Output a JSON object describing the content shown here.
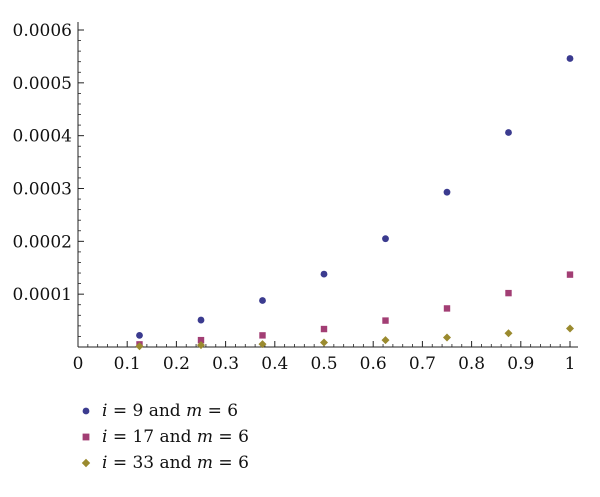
{
  "chart_data": {
    "type": "scatter",
    "title": "",
    "xlabel": "",
    "ylabel": "",
    "xlim": [
      0,
      1
    ],
    "ylim": [
      0,
      0.0006
    ],
    "x_ticks": [
      "0",
      "0.1",
      "0.2",
      "0.3",
      "0.4",
      "0.5",
      "0.6",
      "0.7",
      "0.8",
      "0.9",
      "1"
    ],
    "y_ticks": [
      "0.0001",
      "0.0002",
      "0.0003",
      "0.0004",
      "0.0005",
      "0.0006"
    ],
    "grid": false,
    "legend_position": "bottom-left",
    "series": [
      {
        "name": "i = 9 and m = 6",
        "marker": "circle",
        "color": "#3b3b8f",
        "x": [
          0.125,
          0.25,
          0.375,
          0.5,
          0.625,
          0.75,
          0.875,
          1.0
        ],
        "y": [
          2.2e-05,
          5.1e-05,
          8.8e-05,
          0.000138,
          0.000205,
          0.000293,
          0.000406,
          0.000546
        ]
      },
      {
        "name": "i = 17 and m = 6",
        "marker": "square",
        "color": "#a23e74",
        "x": [
          0.125,
          0.25,
          0.375,
          0.5,
          0.625,
          0.75,
          0.875,
          1.0
        ],
        "y": [
          5e-06,
          1.3e-05,
          2.2e-05,
          3.4e-05,
          5e-05,
          7.3e-05,
          0.000102,
          0.000137
        ]
      },
      {
        "name": "i = 33 and m = 6",
        "marker": "diamond",
        "color": "#9a8a2e",
        "x": [
          0.125,
          0.25,
          0.375,
          0.5,
          0.625,
          0.75,
          0.875,
          1.0
        ],
        "y": [
          1.5e-06,
          3.5e-06,
          5.5e-06,
          8.5e-06,
          1.3e-05,
          1.8e-05,
          2.6e-05,
          3.5e-05
        ]
      }
    ]
  },
  "legend": [
    {
      "var1": "i",
      "eq1": " = 9 and ",
      "var2": "m",
      "eq2": " = 6",
      "marker": "circle",
      "color": "#3b3b8f"
    },
    {
      "var1": "i",
      "eq1": " = 17 and ",
      "var2": "m",
      "eq2": " = 6",
      "marker": "square",
      "color": "#a23e74"
    },
    {
      "var1": "i",
      "eq1": " = 33 and ",
      "var2": "m",
      "eq2": " = 6",
      "marker": "diamond",
      "color": "#9a8a2e"
    }
  ]
}
